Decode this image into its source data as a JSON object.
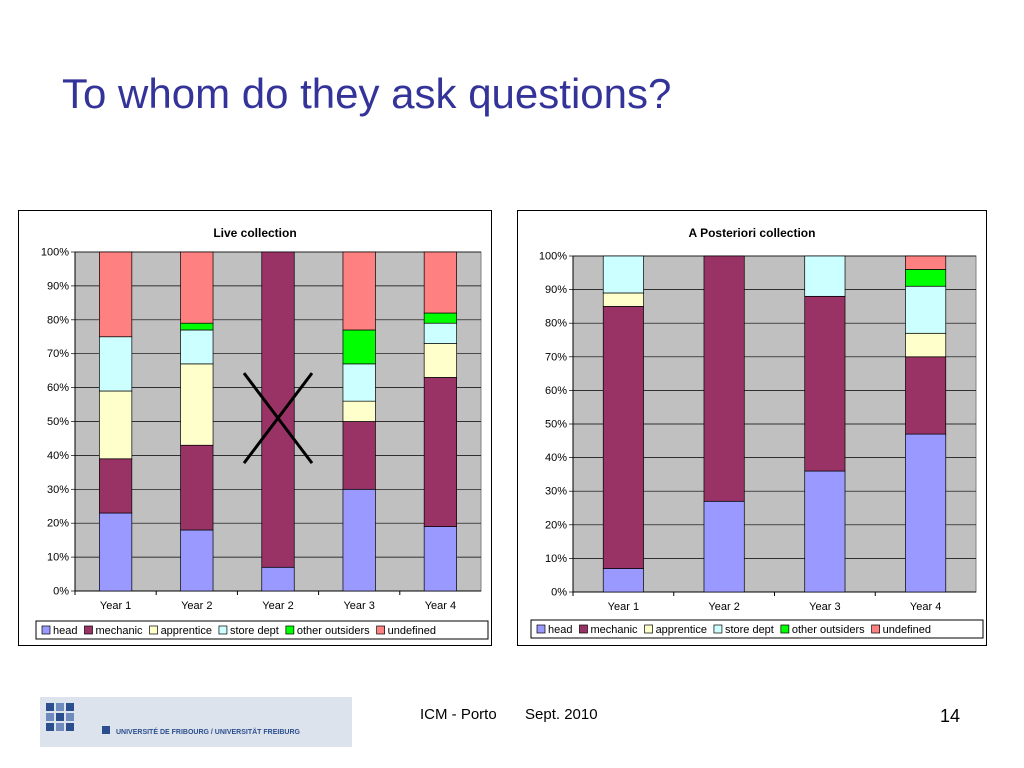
{
  "slide": {
    "title": "To whom do they ask questions?",
    "footer_event": "ICM - Porto",
    "footer_date": "Sept. 2010",
    "page_number": "14",
    "logo_text": "UNIVERSITÉ DE FRIBOURG / UNIVERSITÄT FREIBURG"
  },
  "legend_items": [
    {
      "name": "head",
      "color": "#9999ff"
    },
    {
      "name": "mechanic",
      "color": "#993366"
    },
    {
      "name": "apprentice",
      "color": "#ffffcc"
    },
    {
      "name": "store dept",
      "color": "#ccffff"
    },
    {
      "name": "other outsiders",
      "color": "#00ff00"
    },
    {
      "name": "undefined",
      "color": "#ff8080"
    }
  ],
  "chart_data": [
    {
      "type": "bar",
      "stacked": "percent",
      "title": "Live collection",
      "categories": [
        "Year 1",
        "Year 2",
        "Year 2",
        "Year 3",
        "Year 4"
      ],
      "crossed_out_category_index": 2,
      "ylim": [
        0,
        100
      ],
      "yticks": [
        "0%",
        "10%",
        "20%",
        "30%",
        "40%",
        "50%",
        "60%",
        "70%",
        "80%",
        "90%",
        "100%"
      ],
      "grid": true,
      "legend_position": "bottom",
      "series": [
        {
          "name": "head",
          "values": [
            23,
            18,
            7,
            30,
            19
          ]
        },
        {
          "name": "mechanic",
          "values": [
            16,
            25,
            93,
            20,
            44
          ]
        },
        {
          "name": "apprentice",
          "values": [
            20,
            24,
            0,
            6,
            10
          ]
        },
        {
          "name": "store dept",
          "values": [
            16,
            10,
            0,
            11,
            6
          ]
        },
        {
          "name": "other outsiders",
          "values": [
            0,
            2,
            0,
            10,
            3
          ]
        },
        {
          "name": "undefined",
          "values": [
            25,
            21,
            0,
            23,
            18
          ]
        }
      ]
    },
    {
      "type": "bar",
      "stacked": "percent",
      "title": "A Posteriori  collection",
      "categories": [
        "Year 1",
        "Year 2",
        "Year 3",
        "Year 4"
      ],
      "ylim": [
        0,
        100
      ],
      "yticks": [
        "0%",
        "10%",
        "20%",
        "30%",
        "40%",
        "50%",
        "60%",
        "70%",
        "80%",
        "90%",
        "100%"
      ],
      "grid": true,
      "legend_position": "bottom",
      "series": [
        {
          "name": "head",
          "values": [
            7,
            27,
            36,
            47
          ]
        },
        {
          "name": "mechanic",
          "values": [
            78,
            73,
            52,
            23
          ]
        },
        {
          "name": "apprentice",
          "values": [
            4,
            0,
            0,
            7
          ]
        },
        {
          "name": "store dept",
          "values": [
            11,
            0,
            12,
            14
          ]
        },
        {
          "name": "other outsiders",
          "values": [
            0,
            0,
            0,
            5
          ]
        },
        {
          "name": "undefined",
          "values": [
            0,
            0,
            0,
            4
          ]
        }
      ]
    }
  ]
}
